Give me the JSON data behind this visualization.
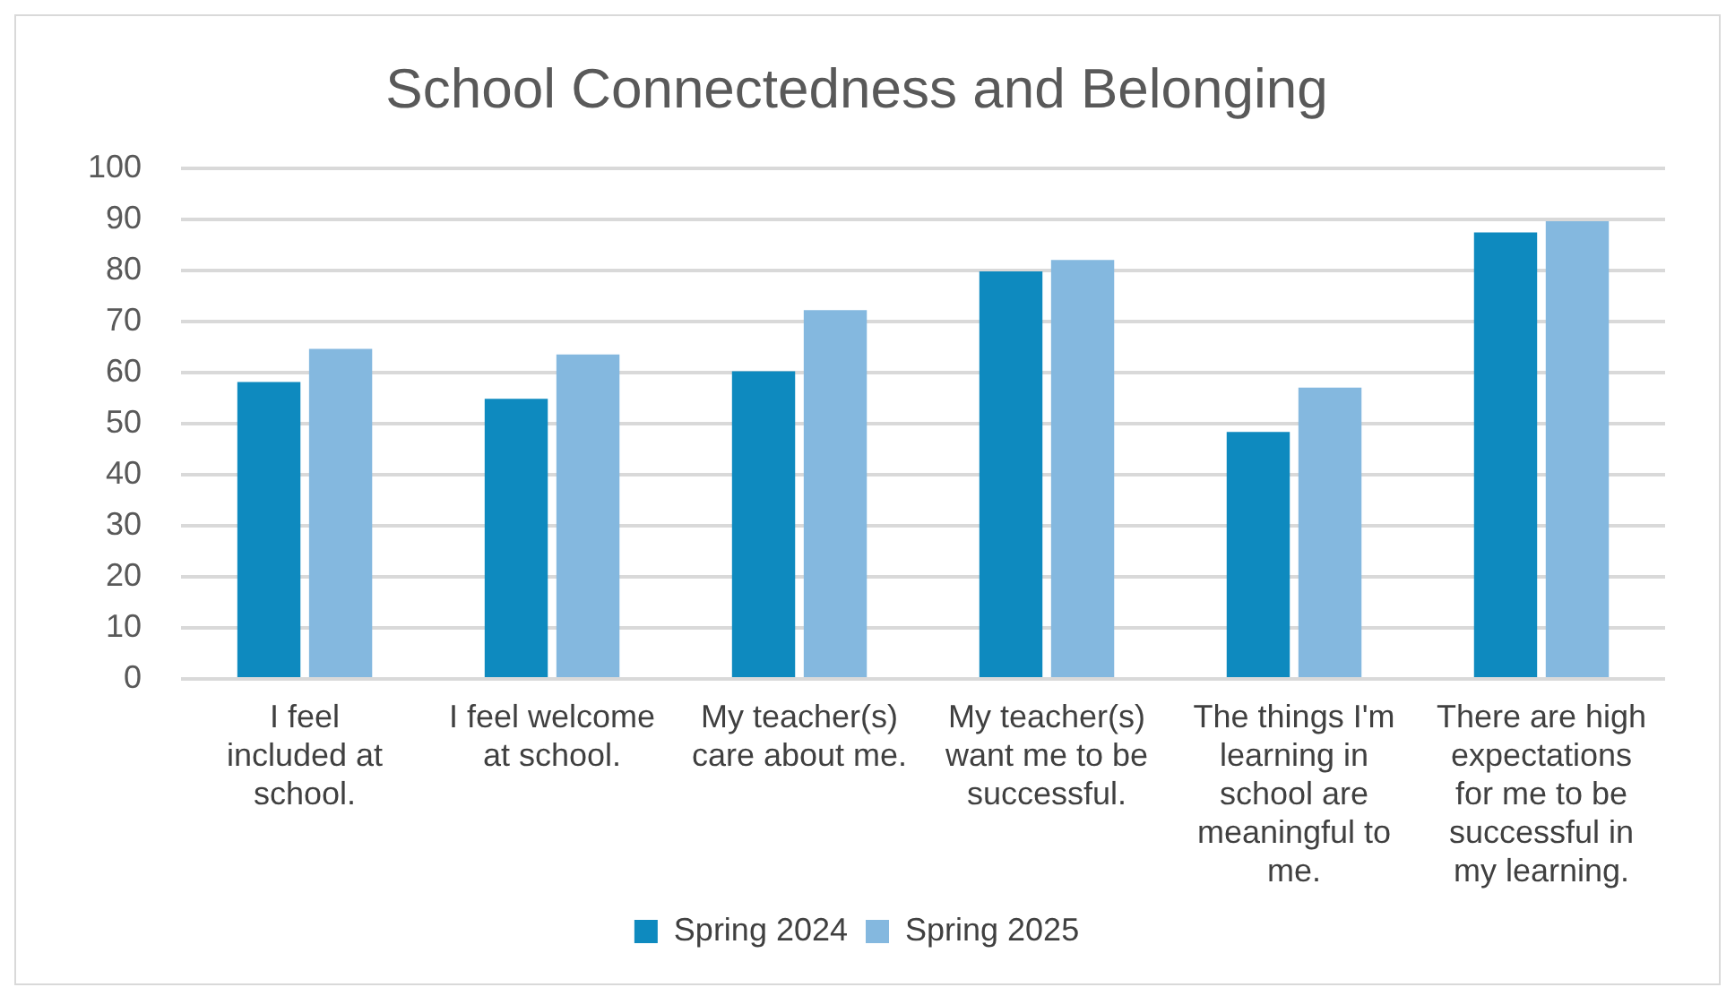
{
  "chart_data": {
    "type": "bar",
    "title": "School Connectedness and Belonging",
    "categories": [
      "I feel included at school.",
      "I feel welcome at school.",
      "My teacher(s) care about me.",
      "My teacher(s) want me to be successful.",
      "The things I'm learning in school are meaningful to me.",
      "There are high expectations for me to be successful in my learning."
    ],
    "series": [
      {
        "name": "Spring 2024",
        "color": "#0e8abf",
        "values": [
          58.2,
          54.9,
          60.3,
          79.9,
          48.4,
          87.5
        ]
      },
      {
        "name": "Spring 2025",
        "color": "#84b8df",
        "values": [
          64.7,
          63.6,
          72.3,
          82.1,
          57.1,
          89.7
        ]
      }
    ],
    "ylim": [
      0,
      100
    ],
    "yticks": [
      0,
      10,
      20,
      30,
      40,
      50,
      60,
      70,
      80,
      90,
      100
    ],
    "grid": "y",
    "legend": "bottom"
  }
}
